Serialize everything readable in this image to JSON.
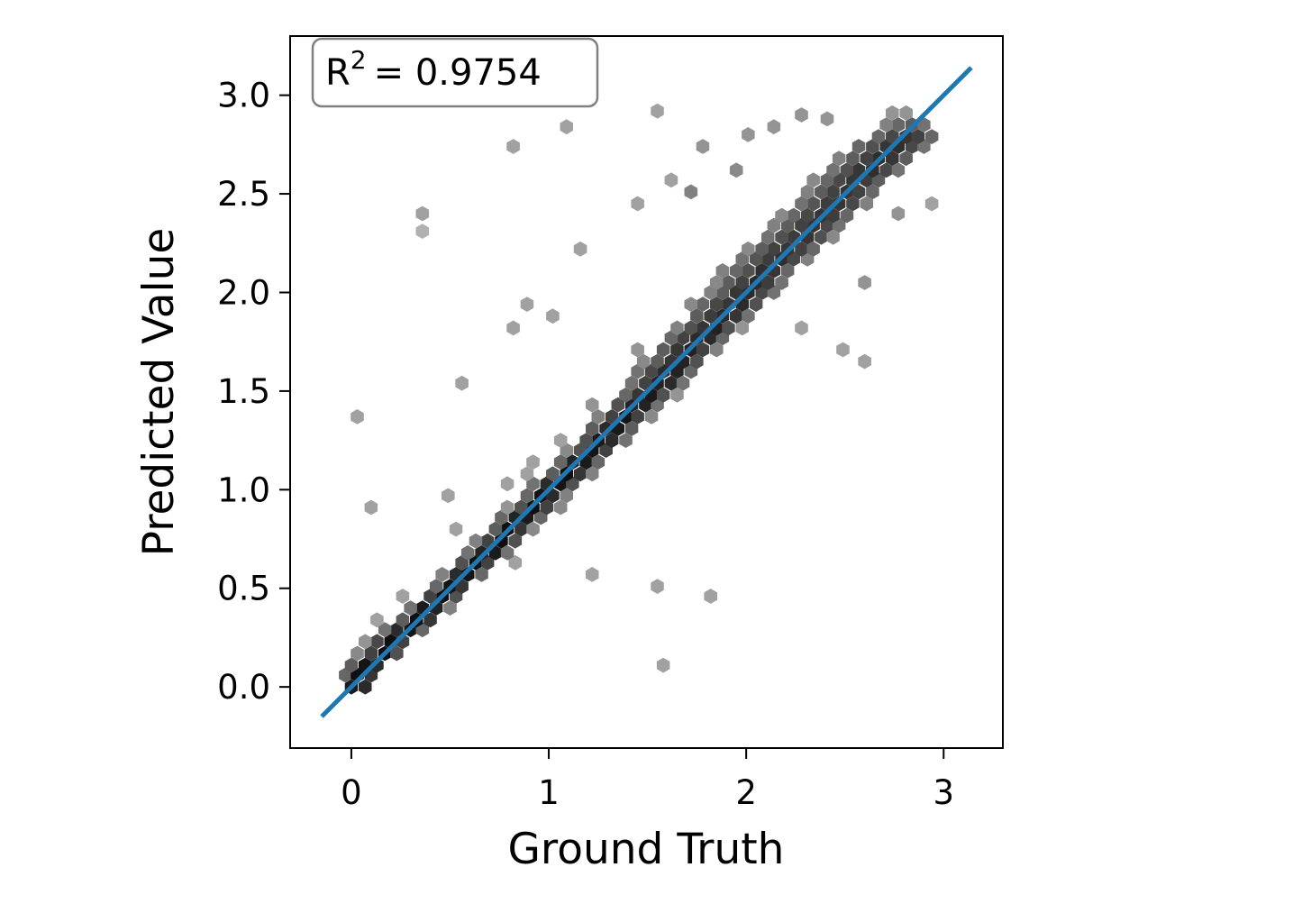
{
  "chart_data": {
    "type": "hexbin",
    "xlabel": "Ground Truth",
    "ylabel": "Predicted Value",
    "annotation": {
      "base": "R",
      "sup": "2",
      "rest": "= 0.9754"
    },
    "xlim": [
      -0.31,
      3.3
    ],
    "ylim": [
      -0.31,
      3.3
    ],
    "xticks": [
      0,
      1,
      2,
      3
    ],
    "yticks": [
      {
        "value": 0,
        "label": "0.0"
      },
      {
        "value": 0.5,
        "label": "0.5"
      },
      {
        "value": 1,
        "label": "1.0"
      },
      {
        "value": 1.5,
        "label": "1.5"
      },
      {
        "value": 2,
        "label": "2.0"
      },
      {
        "value": 2.5,
        "label": "2.5"
      },
      {
        "value": 3,
        "label": "3.0"
      }
    ],
    "cmap": "Greys",
    "fit_line": {
      "x": [
        -0.15,
        3.14
      ],
      "y": [
        -0.15,
        3.14
      ],
      "color": "#1f77b4"
    },
    "hexbins": [
      [
        0.0,
        0.0,
        40
      ],
      [
        0.07,
        0.0,
        30
      ],
      [
        -0.03,
        0.06,
        10
      ],
      [
        0.03,
        0.06,
        50
      ],
      [
        0.1,
        0.06,
        25
      ],
      [
        0.07,
        0.11,
        45
      ],
      [
        0.13,
        0.11,
        30
      ],
      [
        0.0,
        0.11,
        12
      ],
      [
        0.1,
        0.17,
        20
      ],
      [
        0.17,
        0.17,
        50
      ],
      [
        0.23,
        0.17,
        15
      ],
      [
        0.03,
        0.17,
        5
      ],
      [
        0.2,
        0.23,
        50
      ],
      [
        0.26,
        0.23,
        20
      ],
      [
        0.13,
        0.23,
        18
      ],
      [
        0.07,
        0.23,
        4
      ],
      [
        0.23,
        0.29,
        30
      ],
      [
        0.3,
        0.29,
        45
      ],
      [
        0.36,
        0.29,
        10
      ],
      [
        0.17,
        0.29,
        8
      ],
      [
        0.33,
        0.34,
        50
      ],
      [
        0.4,
        0.34,
        25
      ],
      [
        0.26,
        0.34,
        12
      ],
      [
        0.13,
        0.34,
        3
      ],
      [
        0.36,
        0.4,
        40
      ],
      [
        0.43,
        0.4,
        35
      ],
      [
        0.3,
        0.4,
        8
      ],
      [
        0.5,
        0.4,
        6
      ],
      [
        0.46,
        0.46,
        50
      ],
      [
        0.4,
        0.46,
        20
      ],
      [
        0.53,
        0.46,
        15
      ],
      [
        0.26,
        0.46,
        3
      ],
      [
        0.5,
        0.51,
        45
      ],
      [
        0.56,
        0.51,
        25
      ],
      [
        0.43,
        0.51,
        10
      ],
      [
        0.53,
        0.57,
        30
      ],
      [
        0.59,
        0.57,
        45
      ],
      [
        0.66,
        0.57,
        10
      ],
      [
        0.46,
        0.57,
        6
      ],
      [
        0.63,
        0.63,
        50
      ],
      [
        0.56,
        0.63,
        15
      ],
      [
        0.69,
        0.63,
        20
      ],
      [
        0.83,
        0.63,
        3
      ],
      [
        0.66,
        0.68,
        35
      ],
      [
        0.73,
        0.68,
        40
      ],
      [
        0.59,
        0.68,
        8
      ],
      [
        0.79,
        0.68,
        8
      ],
      [
        0.69,
        0.74,
        20
      ],
      [
        0.76,
        0.74,
        50
      ],
      [
        0.83,
        0.74,
        15
      ],
      [
        0.63,
        0.74,
        6
      ],
      [
        0.79,
        0.8,
        50
      ],
      [
        0.86,
        0.8,
        25
      ],
      [
        0.73,
        0.8,
        12
      ],
      [
        0.92,
        0.8,
        5
      ],
      [
        0.53,
        0.8,
        3
      ],
      [
        0.83,
        0.86,
        35
      ],
      [
        0.89,
        0.86,
        40
      ],
      [
        0.96,
        0.86,
        10
      ],
      [
        0.76,
        0.86,
        10
      ],
      [
        0.92,
        0.91,
        50
      ],
      [
        0.86,
        0.91,
        15
      ],
      [
        0.99,
        0.91,
        20
      ],
      [
        0.79,
        0.91,
        4
      ],
      [
        1.06,
        0.91,
        5
      ],
      [
        0.96,
        0.97,
        45
      ],
      [
        1.02,
        0.97,
        30
      ],
      [
        0.89,
        0.97,
        10
      ],
      [
        1.09,
        0.97,
        6
      ],
      [
        0.99,
        1.03,
        30
      ],
      [
        1.06,
        1.03,
        45
      ],
      [
        1.12,
        1.03,
        15
      ],
      [
        0.92,
        1.03,
        8
      ],
      [
        0.79,
        1.03,
        3
      ],
      [
        1.09,
        1.08,
        50
      ],
      [
        1.02,
        1.08,
        12
      ],
      [
        1.16,
        1.08,
        25
      ],
      [
        1.22,
        1.08,
        6
      ],
      [
        1.12,
        1.14,
        35
      ],
      [
        1.19,
        1.14,
        40
      ],
      [
        1.06,
        1.14,
        10
      ],
      [
        1.25,
        1.14,
        10
      ],
      [
        0.92,
        1.14,
        3
      ],
      [
        1.22,
        1.2,
        45
      ],
      [
        1.16,
        1.2,
        15
      ],
      [
        1.29,
        1.2,
        20
      ],
      [
        1.09,
        1.2,
        5
      ],
      [
        1.25,
        1.25,
        40
      ],
      [
        1.32,
        1.25,
        30
      ],
      [
        1.19,
        1.25,
        15
      ],
      [
        1.39,
        1.25,
        8
      ],
      [
        1.06,
        1.25,
        3
      ],
      [
        1.29,
        1.31,
        30
      ],
      [
        1.35,
        1.31,
        40
      ],
      [
        1.42,
        1.31,
        12
      ],
      [
        1.22,
        1.31,
        12
      ],
      [
        1.39,
        1.37,
        45
      ],
      [
        1.32,
        1.37,
        20
      ],
      [
        1.45,
        1.37,
        20
      ],
      [
        1.25,
        1.37,
        6
      ],
      [
        1.52,
        1.37,
        5
      ],
      [
        1.42,
        1.43,
        35
      ],
      [
        1.49,
        1.43,
        35
      ],
      [
        1.35,
        1.43,
        15
      ],
      [
        1.55,
        1.43,
        8
      ],
      [
        1.22,
        1.43,
        4
      ],
      [
        1.52,
        1.48,
        40
      ],
      [
        1.45,
        1.48,
        25
      ],
      [
        1.58,
        1.48,
        15
      ],
      [
        1.39,
        1.48,
        10
      ],
      [
        1.65,
        1.48,
        4
      ],
      [
        1.55,
        1.54,
        35
      ],
      [
        1.62,
        1.54,
        30
      ],
      [
        1.49,
        1.54,
        20
      ],
      [
        1.42,
        1.54,
        8
      ],
      [
        1.68,
        1.54,
        8
      ],
      [
        1.58,
        1.6,
        30
      ],
      [
        1.65,
        1.6,
        35
      ],
      [
        1.52,
        1.6,
        18
      ],
      [
        1.72,
        1.6,
        10
      ],
      [
        1.45,
        1.6,
        8
      ],
      [
        1.68,
        1.65,
        35
      ],
      [
        1.62,
        1.65,
        25
      ],
      [
        1.75,
        1.65,
        15
      ],
      [
        1.55,
        1.65,
        12
      ],
      [
        1.48,
        1.65,
        5
      ],
      [
        1.72,
        1.71,
        35
      ],
      [
        1.65,
        1.71,
        25
      ],
      [
        1.78,
        1.71,
        20
      ],
      [
        1.58,
        1.71,
        12
      ],
      [
        1.85,
        1.71,
        6
      ],
      [
        1.45,
        1.71,
        4
      ],
      [
        1.75,
        1.77,
        30
      ],
      [
        1.82,
        1.77,
        30
      ],
      [
        1.68,
        1.77,
        20
      ],
      [
        1.62,
        1.77,
        10
      ],
      [
        1.88,
        1.77,
        10
      ],
      [
        1.85,
        1.82,
        35
      ],
      [
        1.78,
        1.82,
        25
      ],
      [
        1.91,
        1.82,
        15
      ],
      [
        1.72,
        1.82,
        15
      ],
      [
        1.65,
        1.82,
        6
      ],
      [
        1.98,
        1.82,
        4
      ],
      [
        1.88,
        1.88,
        30
      ],
      [
        1.95,
        1.88,
        25
      ],
      [
        1.82,
        1.88,
        22
      ],
      [
        1.75,
        1.88,
        12
      ],
      [
        2.01,
        1.88,
        8
      ],
      [
        1.98,
        1.94,
        30
      ],
      [
        1.91,
        1.94,
        25
      ],
      [
        1.85,
        1.94,
        18
      ],
      [
        2.05,
        1.94,
        15
      ],
      [
        1.78,
        1.94,
        10
      ],
      [
        1.72,
        1.94,
        5
      ],
      [
        2.01,
        2.0,
        30
      ],
      [
        1.95,
        2.0,
        25
      ],
      [
        2.08,
        2.0,
        18
      ],
      [
        1.88,
        2.0,
        12
      ],
      [
        2.14,
        2.0,
        8
      ],
      [
        1.82,
        2.0,
        6
      ],
      [
        2.05,
        2.05,
        30
      ],
      [
        2.11,
        2.05,
        22
      ],
      [
        1.98,
        2.05,
        20
      ],
      [
        1.91,
        2.05,
        12
      ],
      [
        2.18,
        2.05,
        8
      ],
      [
        1.85,
        2.05,
        5
      ],
      [
        2.08,
        2.11,
        28
      ],
      [
        2.14,
        2.11,
        25
      ],
      [
        2.01,
        2.11,
        15
      ],
      [
        1.95,
        2.11,
        10
      ],
      [
        2.21,
        2.11,
        10
      ],
      [
        1.88,
        2.11,
        6
      ],
      [
        2.18,
        2.17,
        28
      ],
      [
        2.11,
        2.17,
        22
      ],
      [
        2.24,
        2.17,
        18
      ],
      [
        2.05,
        2.17,
        14
      ],
      [
        1.98,
        2.17,
        8
      ],
      [
        2.31,
        2.17,
        6
      ],
      [
        2.21,
        2.22,
        25
      ],
      [
        2.28,
        2.22,
        20
      ],
      [
        2.14,
        2.22,
        20
      ],
      [
        2.08,
        2.22,
        12
      ],
      [
        2.34,
        2.22,
        10
      ],
      [
        2.01,
        2.22,
        5
      ],
      [
        2.31,
        2.28,
        25
      ],
      [
        2.24,
        2.28,
        22
      ],
      [
        2.18,
        2.28,
        15
      ],
      [
        2.38,
        2.28,
        15
      ],
      [
        2.11,
        2.28,
        8
      ],
      [
        2.44,
        2.28,
        5
      ],
      [
        2.34,
        2.34,
        25
      ],
      [
        2.28,
        2.34,
        20
      ],
      [
        2.41,
        2.34,
        18
      ],
      [
        2.21,
        2.34,
        12
      ],
      [
        2.47,
        2.34,
        8
      ],
      [
        2.14,
        2.34,
        6
      ],
      [
        2.38,
        2.39,
        25
      ],
      [
        2.44,
        2.39,
        22
      ],
      [
        2.31,
        2.39,
        18
      ],
      [
        2.24,
        2.39,
        10
      ],
      [
        2.51,
        2.39,
        10
      ],
      [
        2.18,
        2.39,
        5
      ],
      [
        2.47,
        2.45,
        25
      ],
      [
        2.41,
        2.45,
        22
      ],
      [
        2.54,
        2.45,
        18
      ],
      [
        2.34,
        2.45,
        14
      ],
      [
        2.28,
        2.45,
        8
      ],
      [
        2.61,
        2.45,
        6
      ],
      [
        2.51,
        2.51,
        25
      ],
      [
        2.57,
        2.51,
        20
      ],
      [
        2.44,
        2.51,
        20
      ],
      [
        2.38,
        2.51,
        12
      ],
      [
        2.64,
        2.51,
        10
      ],
      [
        2.31,
        2.51,
        6
      ],
      [
        2.54,
        2.57,
        25
      ],
      [
        2.61,
        2.57,
        22
      ],
      [
        2.47,
        2.57,
        18
      ],
      [
        2.67,
        2.57,
        12
      ],
      [
        2.41,
        2.57,
        10
      ],
      [
        2.34,
        2.57,
        5
      ],
      [
        2.64,
        2.62,
        28
      ],
      [
        2.57,
        2.62,
        25
      ],
      [
        2.71,
        2.62,
        18
      ],
      [
        2.51,
        2.62,
        15
      ],
      [
        2.44,
        2.62,
        8
      ],
      [
        2.77,
        2.62,
        8
      ],
      [
        2.67,
        2.68,
        28
      ],
      [
        2.74,
        2.68,
        25
      ],
      [
        2.61,
        2.68,
        20
      ],
      [
        2.54,
        2.68,
        12
      ],
      [
        2.81,
        2.68,
        12
      ],
      [
        2.47,
        2.68,
        6
      ],
      [
        2.77,
        2.74,
        28
      ],
      [
        2.71,
        2.74,
        25
      ],
      [
        2.84,
        2.74,
        18
      ],
      [
        2.64,
        2.74,
        15
      ],
      [
        2.57,
        2.74,
        10
      ],
      [
        2.9,
        2.74,
        8
      ],
      [
        2.81,
        2.79,
        25
      ],
      [
        2.87,
        2.79,
        20
      ],
      [
        2.74,
        2.79,
        18
      ],
      [
        2.67,
        2.79,
        10
      ],
      [
        2.94,
        2.79,
        10
      ],
      [
        2.84,
        2.85,
        12
      ],
      [
        2.77,
        2.85,
        10
      ],
      [
        2.9,
        2.85,
        8
      ],
      [
        2.71,
        2.85,
        6
      ],
      [
        2.81,
        2.91,
        4
      ],
      [
        2.74,
        2.91,
        4
      ],
      [
        0.03,
        1.37,
        3
      ],
      [
        0.1,
        0.91,
        3
      ],
      [
        0.49,
        0.97,
        3
      ],
      [
        0.56,
        1.54,
        3
      ],
      [
        0.36,
        2.4,
        3
      ],
      [
        0.36,
        2.31,
        2
      ],
      [
        0.82,
        2.74,
        3
      ],
      [
        1.09,
        2.84,
        3
      ],
      [
        1.55,
        2.92,
        3
      ],
      [
        1.62,
        2.57,
        3
      ],
      [
        1.58,
        0.11,
        3
      ],
      [
        1.82,
        0.46,
        3
      ],
      [
        1.55,
        0.51,
        3
      ],
      [
        1.22,
        0.57,
        3
      ],
      [
        0.89,
        1.08,
        3
      ],
      [
        2.6,
        1.65,
        3
      ],
      [
        2.49,
        1.71,
        3
      ],
      [
        2.01,
        2.8,
        4
      ],
      [
        2.14,
        2.84,
        4
      ],
      [
        2.28,
        2.9,
        4
      ],
      [
        2.41,
        2.88,
        4
      ],
      [
        1.95,
        2.62,
        5
      ],
      [
        1.72,
        2.51,
        6
      ],
      [
        1.78,
        2.74,
        4
      ],
      [
        1.45,
        2.45,
        3
      ],
      [
        1.16,
        2.22,
        3
      ],
      [
        0.89,
        1.94,
        3
      ],
      [
        1.02,
        1.88,
        3
      ],
      [
        0.82,
        1.82,
        3
      ],
      [
        2.77,
        2.4,
        4
      ],
      [
        2.94,
        2.45,
        3
      ],
      [
        2.28,
        1.82,
        3
      ],
      [
        2.6,
        2.05,
        4
      ]
    ]
  }
}
